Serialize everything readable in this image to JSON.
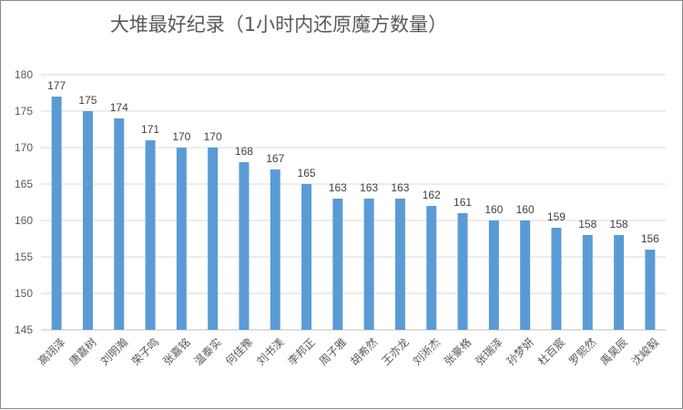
{
  "chart_data": {
    "type": "bar",
    "title": "大堆最好纪录（1小时内还原魔方数量）",
    "xlabel": "",
    "ylabel": "",
    "categories": [
      "高翊泽",
      "唐嘉树",
      "刘明瀚",
      "荣子鸣",
      "张嘉铭",
      "温泰实",
      "何佳豫",
      "刘书渼",
      "李邦正",
      "周子雅",
      "胡希然",
      "王亦龙",
      "刘淅杰",
      "张豪格",
      "张瑞泽",
      "孙梦妍",
      "杜百宸",
      "罗熙然",
      "禹昊辰",
      "沈峻毅"
    ],
    "values": [
      177,
      175,
      174,
      171,
      170,
      170,
      168,
      167,
      165,
      163,
      163,
      163,
      162,
      161,
      160,
      160,
      159,
      158,
      158,
      156
    ],
    "ylim": [
      145,
      180
    ],
    "yticks": [
      145,
      150,
      155,
      160,
      165,
      170,
      175,
      180
    ],
    "grid": true,
    "legend": "none",
    "bar_color": "#5b9bd5"
  }
}
